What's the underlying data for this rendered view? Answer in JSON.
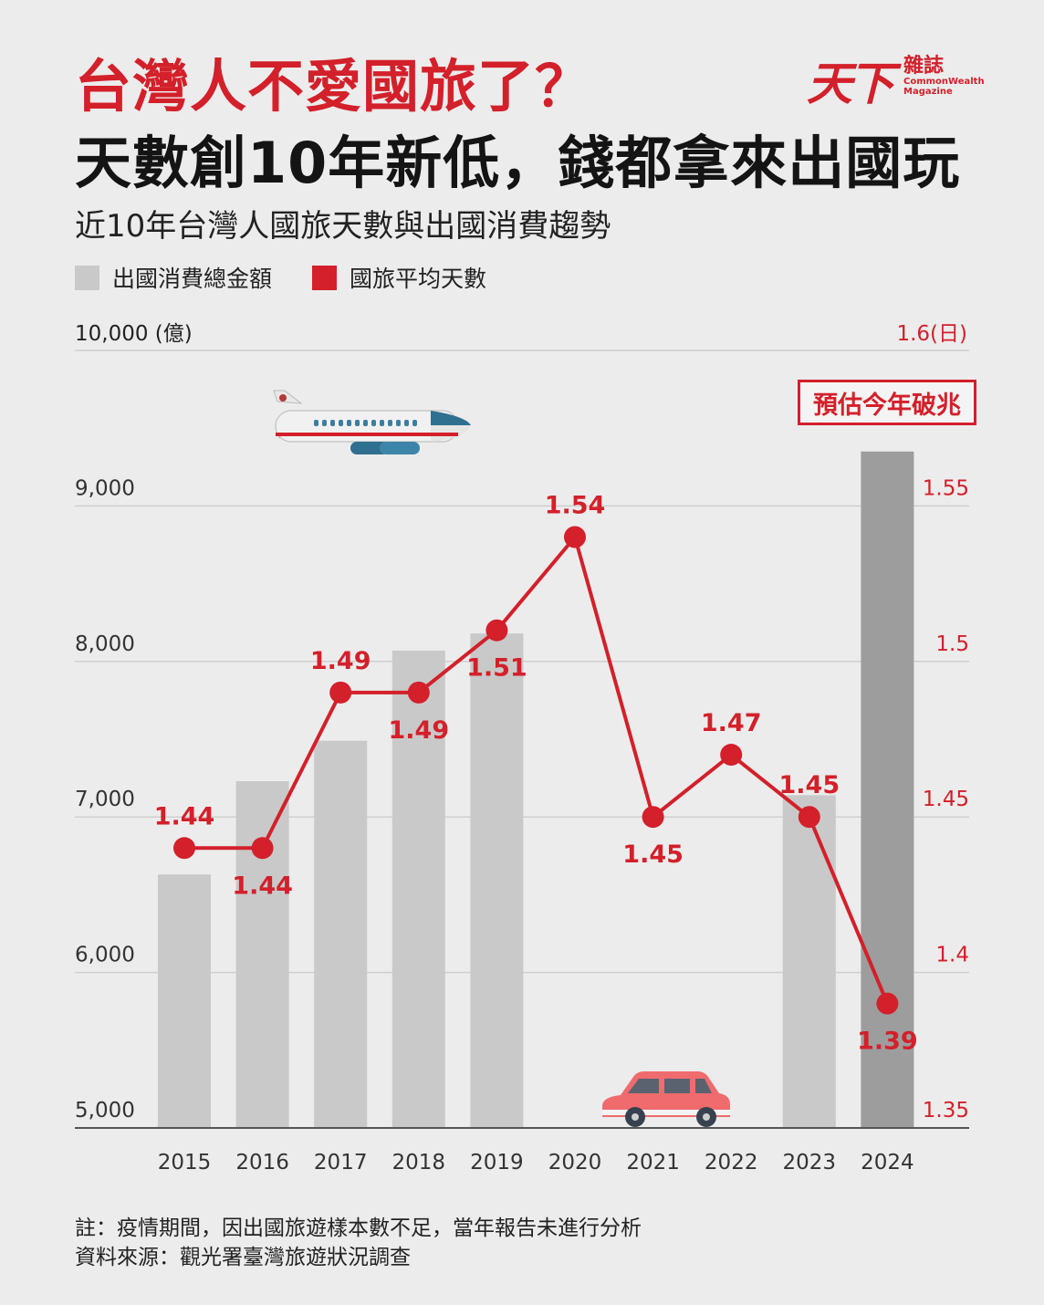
{
  "header": {
    "title_red": "台灣人不愛國旅了？",
    "title_black": "天數創10年新低，錢都拿來出國玩",
    "subtitle": "近10年台灣人國旅天數與出國消費趨勢"
  },
  "brand": {
    "mark": "天下",
    "name_zh": "雜誌",
    "name_en": "CommonWealth Magazine"
  },
  "legend": {
    "bar_label": "出國消費總金額",
    "line_label": "國旅平均天數"
  },
  "axes": {
    "left_title": "10,000 (億)",
    "right_title": "1.6(日)"
  },
  "badge": {
    "text": "預估今年破兆"
  },
  "footer": {
    "note": "註：疫情期間，因出國旅遊樣本數不足，當年報告未進行分析",
    "source": "資料來源：觀光署臺灣旅遊狀況調查"
  },
  "colors": {
    "accent_red": "#d3202a",
    "bar_light": "#c9c9c9",
    "bar_dark": "#9d9d9d",
    "background": "#ececec"
  },
  "icons": [
    "airplane-icon",
    "car-icon"
  ],
  "chart_data": {
    "type": "bar+line",
    "categories": [
      "2015",
      "2016",
      "2017",
      "2018",
      "2019",
      "2020",
      "2021",
      "2022",
      "2023",
      "2024"
    ],
    "series": [
      {
        "name": "出國消費總金額",
        "type": "bar",
        "axis": "left",
        "values": [
          6630,
          7230,
          7490,
          8070,
          8180,
          null,
          null,
          null,
          7140,
          9350
        ]
      },
      {
        "name": "國旅平均天數",
        "type": "line",
        "axis": "right",
        "values": [
          1.44,
          1.44,
          1.49,
          1.49,
          1.51,
          1.54,
          1.45,
          1.47,
          1.45,
          1.39
        ]
      }
    ],
    "line_labels": [
      "1.44",
      "1.44",
      "1.49",
      "1.49",
      "1.51",
      "1.54",
      "1.45",
      "1.47",
      "1.45",
      "1.39"
    ],
    "left_axis": {
      "ylim": [
        5000,
        10000
      ],
      "ticks": [
        "5,000",
        "6,000",
        "7,000",
        "8,000",
        "9,000"
      ]
    },
    "right_axis": {
      "ylim": [
        1.35,
        1.6
      ],
      "ticks": [
        "1.35",
        "1.4",
        "1.45",
        "1.5",
        "1.55"
      ]
    },
    "highlight_category": "2024",
    "grid": true
  }
}
